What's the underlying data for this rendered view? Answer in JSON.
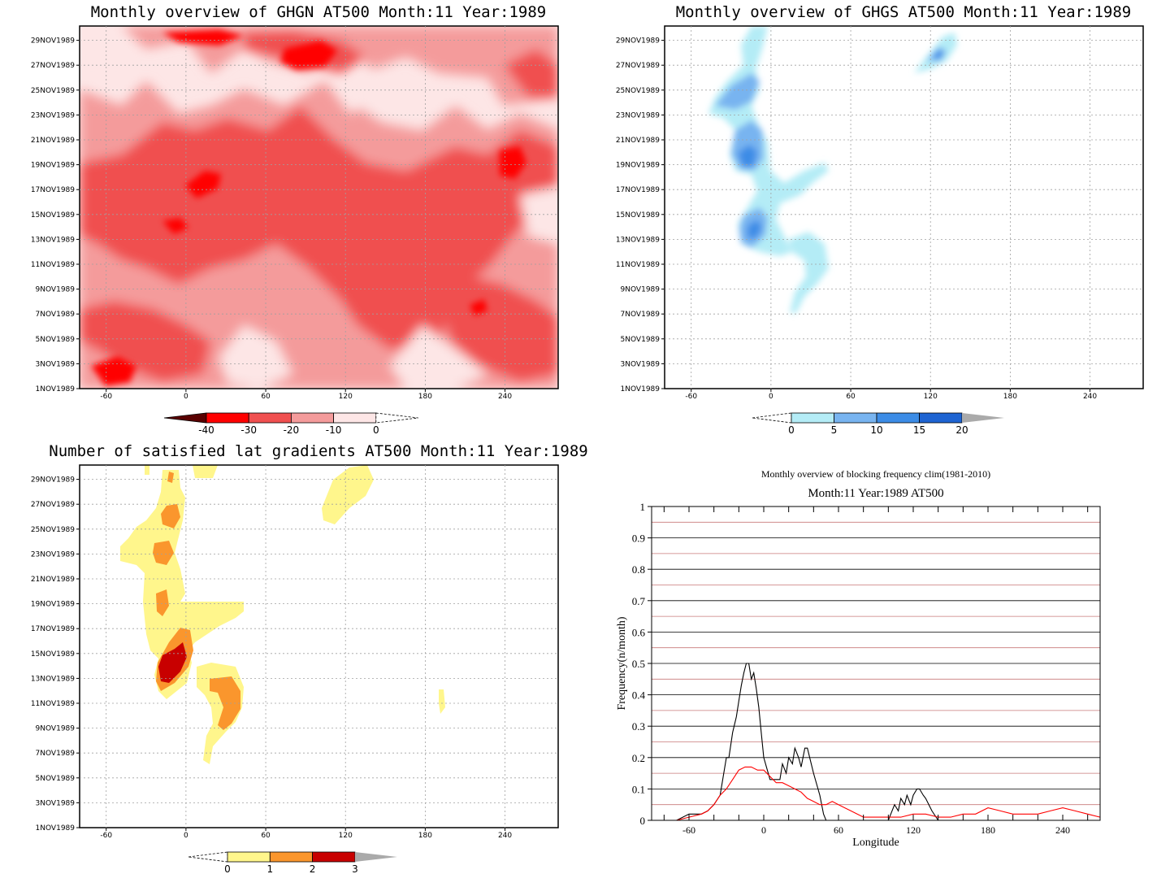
{
  "chart_data": [
    {
      "type": "heatmap",
      "title": "Monthly overview of GHGN AT500 Month:11 Year:1989",
      "x_ticks": [
        "-60",
        "0",
        "60",
        "120",
        "180",
        "240"
      ],
      "y_ticks": [
        "1NOV1989",
        "3NOV1989",
        "5NOV1989",
        "7NOV1989",
        "9NOV1989",
        "11NOV1989",
        "13NOV1989",
        "15NOV1989",
        "17NOV1989",
        "19NOV1989",
        "21NOV1989",
        "23NOV1989",
        "25NOV1989",
        "27NOV1989",
        "29NOV1989"
      ],
      "xlim": [
        -80,
        280
      ],
      "colorbar": {
        "labels": [
          "-40",
          "-30",
          "-20",
          "-10",
          "0"
        ],
        "colors": [
          "#5a0000",
          "#ff0000",
          "#f05050",
          "#f49b9b",
          "#fde6e6"
        ]
      }
    },
    {
      "type": "heatmap",
      "title": "Monthly overview of GHGS AT500 Month:11 Year:1989",
      "x_ticks": [
        "-60",
        "0",
        "60",
        "120",
        "180",
        "240"
      ],
      "y_ticks": [
        "1NOV1989",
        "3NOV1989",
        "5NOV1989",
        "7NOV1989",
        "9NOV1989",
        "11NOV1989",
        "13NOV1989",
        "15NOV1989",
        "17NOV1989",
        "19NOV1989",
        "21NOV1989",
        "23NOV1989",
        "25NOV1989",
        "27NOV1989",
        "29NOV1989"
      ],
      "xlim": [
        -80,
        280
      ],
      "colorbar": {
        "labels": [
          "0",
          "5",
          "10",
          "15",
          "20"
        ],
        "colors": [
          "#b4ecf6",
          "#78b4f0",
          "#3c8ce6",
          "#1e64d2",
          "#aaaaaa"
        ]
      }
    },
    {
      "type": "heatmap",
      "title": "Number of satisfied lat gradients AT500 Month:11 Year:1989",
      "x_ticks": [
        "-60",
        "0",
        "60",
        "120",
        "180",
        "240"
      ],
      "y_ticks": [
        "1NOV1989",
        "3NOV1989",
        "5NOV1989",
        "7NOV1989",
        "9NOV1989",
        "11NOV1989",
        "13NOV1989",
        "15NOV1989",
        "17NOV1989",
        "19NOV1989",
        "21NOV1989",
        "23NOV1989",
        "25NOV1989",
        "27NOV1989",
        "29NOV1989"
      ],
      "xlim": [
        -80,
        280
      ],
      "colorbar": {
        "labels": [
          "0",
          "1",
          "2",
          "3"
        ],
        "colors": [
          "#fff68c",
          "#fa962d",
          "#c80000",
          "#aaaaaa"
        ]
      }
    },
    {
      "type": "line",
      "title": "Monthly overview of blocking frequency clim(1981-2010)",
      "subtitle": "Month:11 Year:1989  AT500",
      "xlabel": "Longitude",
      "ylabel": "Frequency(n/month)",
      "xlim": [
        -90,
        270
      ],
      "ylim": [
        0,
        1
      ],
      "x_ticks": [
        "-60",
        "0",
        "60",
        "120",
        "180",
        "240"
      ],
      "y_ticks": [
        "0",
        "0.1",
        "0.2",
        "0.3",
        "0.4",
        "0.5",
        "0.6",
        "0.7",
        "0.8",
        "0.9",
        "1"
      ],
      "grid": true,
      "series": [
        {
          "color": "#000000",
          "x": [
            -90,
            -70,
            -60,
            -50,
            -45,
            -40,
            -35,
            -30,
            -28,
            -25,
            -22,
            -20,
            -18,
            -16,
            -14,
            -12,
            -10,
            -8,
            -6,
            -4,
            -2,
            0,
            5,
            10,
            13,
            15,
            18,
            20,
            23,
            25,
            28,
            30,
            33,
            35,
            40,
            45,
            48,
            50,
            100,
            103,
            105,
            108,
            110,
            113,
            115,
            118,
            120,
            123,
            125,
            128,
            130,
            135,
            140,
            145,
            150,
            155,
            160,
            175,
            180,
            185,
            190,
            195,
            200,
            210,
            220,
            230,
            240,
            250,
            260,
            270
          ],
          "y": [
            0,
            0,
            0.02,
            0.02,
            0.03,
            0.05,
            0.08,
            0.2,
            0.2,
            0.28,
            0.33,
            0.38,
            0.43,
            0.47,
            0.5,
            0.5,
            0.45,
            0.47,
            0.42,
            0.36,
            0.28,
            0.2,
            0.13,
            0.13,
            0.13,
            0.18,
            0.15,
            0.2,
            0.18,
            0.23,
            0.2,
            0.17,
            0.23,
            0.23,
            0.15,
            0.08,
            0.02,
            0,
            0,
            0.03,
            0.05,
            0.03,
            0.07,
            0.05,
            0.08,
            0.05,
            0.08,
            0.1,
            0.1,
            0.08,
            0.07,
            0.03,
            0,
            0,
            0,
            0,
            0,
            0,
            0,
            0,
            0,
            0,
            0,
            0,
            0,
            0,
            0,
            0,
            0,
            0
          ]
        },
        {
          "color": "#ff0000",
          "x": [
            -90,
            -70,
            -60,
            -50,
            -45,
            -40,
            -35,
            -30,
            -25,
            -20,
            -15,
            -10,
            -5,
            0,
            5,
            10,
            15,
            20,
            25,
            30,
            35,
            40,
            45,
            50,
            55,
            60,
            65,
            70,
            75,
            80,
            90,
            100,
            110,
            120,
            130,
            140,
            150,
            160,
            170,
            180,
            190,
            200,
            210,
            220,
            230,
            240,
            250,
            260,
            270
          ],
          "y": [
            0,
            0,
            0.01,
            0.02,
            0.03,
            0.05,
            0.08,
            0.1,
            0.13,
            0.16,
            0.17,
            0.17,
            0.16,
            0.16,
            0.14,
            0.12,
            0.12,
            0.11,
            0.1,
            0.09,
            0.07,
            0.06,
            0.05,
            0.05,
            0.06,
            0.05,
            0.04,
            0.03,
            0.02,
            0.01,
            0.01,
            0.01,
            0.01,
            0.02,
            0.02,
            0.01,
            0.01,
            0.02,
            0.02,
            0.04,
            0.03,
            0.02,
            0.02,
            0.02,
            0.03,
            0.04,
            0.03,
            0.02,
            0.01
          ]
        }
      ]
    }
  ]
}
